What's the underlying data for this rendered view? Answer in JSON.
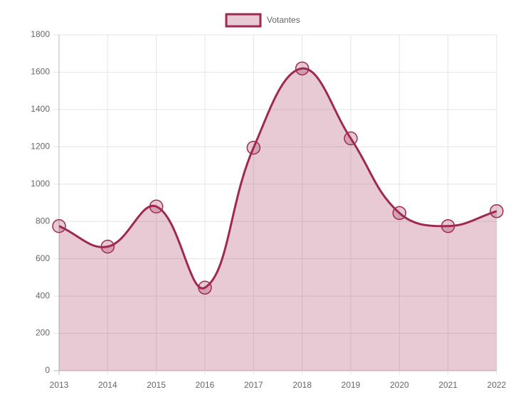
{
  "chart_data": {
    "type": "line",
    "legend": "top",
    "categories": [
      "2013",
      "2014",
      "2015",
      "2016",
      "2017",
      "2018",
      "2019",
      "2020",
      "2021",
      "2022"
    ],
    "series": [
      {
        "name": "Votantes",
        "color": "#9e2a54",
        "values": [
          775,
          665,
          880,
          445,
          1195,
          1620,
          1245,
          845,
          775,
          855
        ]
      }
    ],
    "ylim": [
      0,
      1800
    ],
    "yticks": [
      0,
      200,
      400,
      600,
      800,
      1000,
      1200,
      1400,
      1600,
      1800
    ],
    "grid": true
  }
}
